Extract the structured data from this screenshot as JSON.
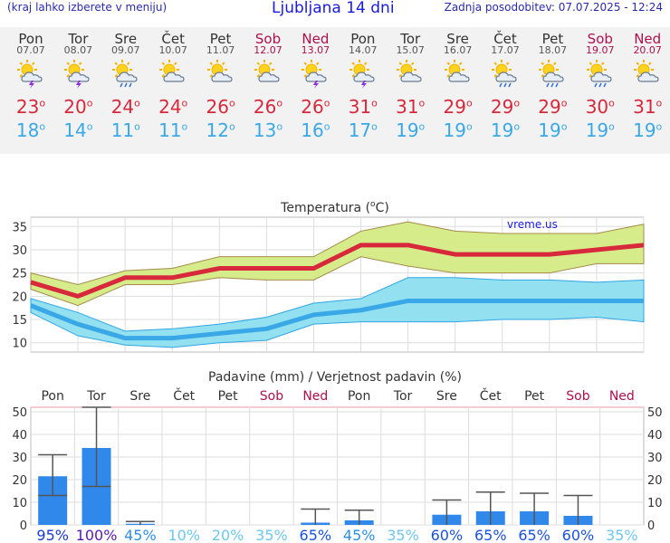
{
  "header": {
    "subtitle": "(kraj lahko izberete v meniju)",
    "title": "Ljubljana 14 dni",
    "updated": "Zadnja posodobitev: 07.07.2025 - 12:24"
  },
  "days": [
    {
      "name": "Pon",
      "date": "07.07",
      "weekend": false,
      "icon": "sun-thunderstorm-icon",
      "max": "23",
      "min": "18"
    },
    {
      "name": "Tor",
      "date": "08.07",
      "weekend": false,
      "icon": "sun-thunderstorm-icon",
      "max": "20",
      "min": "14"
    },
    {
      "name": "Sre",
      "date": "09.07",
      "weekend": false,
      "icon": "sun-cloud-rain-icon",
      "max": "24",
      "min": "11"
    },
    {
      "name": "Čet",
      "date": "10.07",
      "weekend": false,
      "icon": "sun-cloud-icon",
      "max": "24",
      "min": "11"
    },
    {
      "name": "Pet",
      "date": "11.07",
      "weekend": false,
      "icon": "sun-cloud-icon",
      "max": "26",
      "min": "12"
    },
    {
      "name": "Sob",
      "date": "12.07",
      "weekend": true,
      "icon": "sun-cloud-icon",
      "max": "26",
      "min": "13"
    },
    {
      "name": "Ned",
      "date": "13.07",
      "weekend": true,
      "icon": "sun-thunderstorm-icon",
      "max": "26",
      "min": "16"
    },
    {
      "name": "Pon",
      "date": "14.07",
      "weekend": false,
      "icon": "sun-thunderstorm-icon",
      "max": "31",
      "min": "17"
    },
    {
      "name": "Tor",
      "date": "15.07",
      "weekend": false,
      "icon": "sun-cloud-icon",
      "max": "31",
      "min": "19"
    },
    {
      "name": "Sre",
      "date": "16.07",
      "weekend": false,
      "icon": "sun-cloud-icon",
      "max": "29",
      "min": "19"
    },
    {
      "name": "Čet",
      "date": "17.07",
      "weekend": false,
      "icon": "sun-cloud-rain-icon",
      "max": "29",
      "min": "19"
    },
    {
      "name": "Pet",
      "date": "18.07",
      "weekend": false,
      "icon": "sun-cloud-rain-icon",
      "max": "29",
      "min": "19"
    },
    {
      "name": "Sob",
      "date": "19.07",
      "weekend": true,
      "icon": "sun-cloud-rain-icon",
      "max": "30",
      "min": "19"
    },
    {
      "name": "Ned",
      "date": "20.07",
      "weekend": true,
      "icon": "sun-cloud-icon",
      "max": "31",
      "min": "19"
    }
  ],
  "colors": {
    "max": "#d8283c",
    "min": "#3aa8e6",
    "maxband": "#d6ec8a",
    "minband": "#92e0f0",
    "bar": "#2f88ea",
    "weekend": "#b0104a"
  },
  "chart_data": [
    {
      "type": "line",
      "title": "Temperatura (°C)",
      "title_main": "Temperatura (",
      "title_unit": "o",
      "title_end": "C)",
      "watermark": "vreme.us",
      "categories": [
        "Pon",
        "Tor",
        "Sre",
        "Čet",
        "Pet",
        "Sob",
        "Ned",
        "Pon",
        "Tor",
        "Sre",
        "Čet",
        "Pet",
        "Sob",
        "Ned"
      ],
      "ylim": [
        8,
        37
      ],
      "yticks": [
        "10",
        "15",
        "20",
        "25",
        "30",
        "35"
      ],
      "series": [
        {
          "name": "max",
          "values": [
            23,
            20,
            24,
            24,
            26,
            26,
            26,
            31,
            31,
            29,
            29,
            29,
            30,
            31
          ],
          "band_low": [
            21.5,
            18,
            22.5,
            22.5,
            24,
            23.5,
            23.5,
            28.5,
            26.5,
            25,
            25,
            25,
            27,
            27
          ],
          "band_high": [
            25,
            22.5,
            25.5,
            26,
            28.5,
            28.5,
            28.5,
            34,
            36,
            34,
            33.5,
            33.5,
            33.5,
            35.5
          ]
        },
        {
          "name": "min",
          "values": [
            18,
            14,
            11,
            11,
            12,
            13,
            16,
            17,
            19,
            19,
            19,
            19,
            19,
            19
          ],
          "band_low": [
            16.5,
            11.5,
            9.5,
            9,
            10,
            10.5,
            14,
            14.5,
            14.5,
            14.5,
            15,
            15,
            15.5,
            14.5
          ],
          "band_high": [
            19.5,
            16.5,
            12.5,
            13,
            14,
            15.5,
            18.5,
            19.5,
            24,
            24,
            23.5,
            23.5,
            23,
            23.5
          ]
        }
      ]
    },
    {
      "type": "bar",
      "title": "Padavine (mm) / Verjetnost padavin (%)",
      "categories": [
        "Pon",
        "Tor",
        "Sre",
        "Čet",
        "Pet",
        "Sob",
        "Ned",
        "Pon",
        "Tor",
        "Sre",
        "Čet",
        "Pet",
        "Sob",
        "Ned"
      ],
      "weekend": [
        false,
        false,
        false,
        false,
        false,
        true,
        true,
        false,
        false,
        false,
        false,
        false,
        true,
        true
      ],
      "ylim": [
        0,
        52
      ],
      "yticks": [
        "0",
        "10",
        "20",
        "30",
        "40",
        "50"
      ],
      "values": [
        21.5,
        34,
        0.5,
        0,
        0,
        0,
        1,
        2,
        0,
        4.5,
        6,
        6,
        4,
        0
      ],
      "err_low": [
        13,
        17,
        0,
        0,
        0,
        0,
        0,
        0,
        0,
        0,
        0,
        0,
        0,
        0
      ],
      "err_high": [
        31,
        52,
        1.5,
        0,
        0,
        0,
        7,
        6.5,
        0,
        11,
        14.5,
        14,
        13,
        0
      ],
      "probability": [
        "95%",
        "100%",
        "45%",
        "10%",
        "20%",
        "35%",
        "65%",
        "45%",
        "35%",
        "60%",
        "65%",
        "65%",
        "60%",
        "35%"
      ],
      "probability_values": [
        95,
        100,
        45,
        10,
        20,
        35,
        65,
        45,
        35,
        60,
        65,
        65,
        60,
        35
      ]
    }
  ]
}
